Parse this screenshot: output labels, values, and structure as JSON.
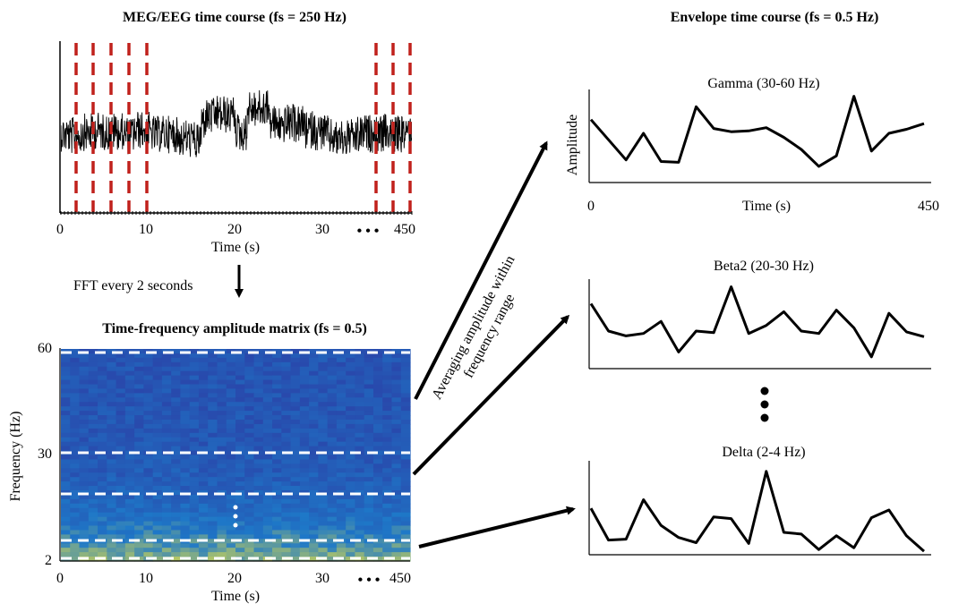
{
  "titles": {
    "eeg": "MEG/EEG time course (fs = 250 Hz)",
    "envelope": "Envelope time course (fs = 0.5 Hz)",
    "tf": "Time-frequency amplitude matrix (fs = 0.5)"
  },
  "eeg_axis": {
    "ticks": [
      "0",
      "10",
      "20",
      "30",
      "450"
    ],
    "xlabel": "Time (s)",
    "ellipsis": "• • •"
  },
  "fft_label": "FFT every 2 seconds",
  "tf_axis": {
    "xticks": [
      "0",
      "10",
      "20",
      "30",
      "450"
    ],
    "yticks": [
      "60",
      "30",
      "2"
    ],
    "xlabel": "Time (s)",
    "ylabel": "Frequency (Hz)",
    "ellipsis": "• • •"
  },
  "averaging_label": {
    "line1": "Averaging amplitude within",
    "line2": "frequency range"
  },
  "bands": [
    {
      "title": "Gamma (30-60 Hz)",
      "ylabel": "Amplitude",
      "xlabel": "Time (s)",
      "xtick_start": "0",
      "xtick_end": "450",
      "values": [
        0.67,
        0.42,
        0.17,
        0.5,
        0.15,
        0.14,
        0.83,
        0.56,
        0.52,
        0.53,
        0.57,
        0.45,
        0.3,
        0.09,
        0.22,
        0.96,
        0.28,
        0.5,
        0.55,
        0.62
      ]
    },
    {
      "title": "Beta2 (20-30 Hz)",
      "values": [
        0.74,
        0.4,
        0.34,
        0.37,
        0.52,
        0.14,
        0.4,
        0.38,
        0.95,
        0.37,
        0.47,
        0.64,
        0.4,
        0.37,
        0.66,
        0.44,
        0.08,
        0.62,
        0.39,
        0.33
      ]
    },
    {
      "title": "Delta (2-4 Hz)",
      "values": [
        0.52,
        0.15,
        0.16,
        0.62,
        0.32,
        0.18,
        0.12,
        0.42,
        0.4,
        0.11,
        0.95,
        0.24,
        0.22,
        0.04,
        0.2,
        0.06,
        0.41,
        0.5,
        0.2,
        0.02
      ]
    }
  ],
  "colors": {
    "signal": "#000000",
    "epoch_marker": "#c0211c",
    "band_marker": "#ffffff",
    "tf_low": "#2b3fa6",
    "tf_high": "#f5e93a"
  }
}
